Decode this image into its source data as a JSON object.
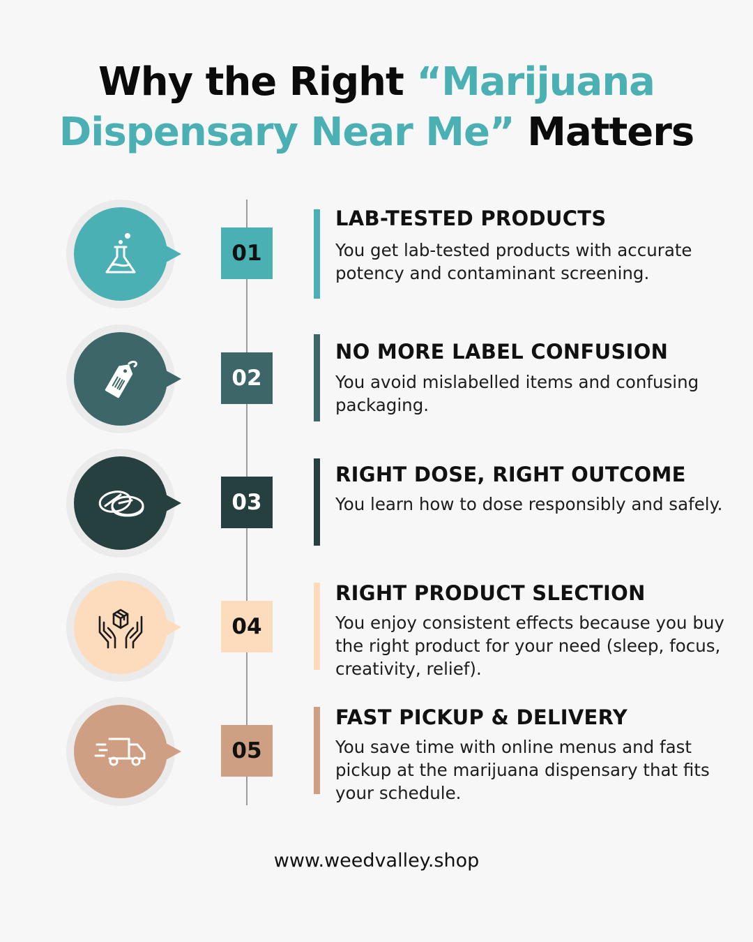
{
  "title": {
    "line1_dark": "Why the Right ",
    "line1_accent": "“Marijuana",
    "line2_accent": "Dispensary Near Me”",
    "line2_dark": " Matters"
  },
  "colors": {
    "teal": "#4ab0b4",
    "slate": "#3d6668",
    "dark": "#26403f",
    "peach": "#fcdcbd",
    "tan": "#cf9f84"
  },
  "items": [
    {
      "number": "01",
      "heading": "LAB-TESTED PRODUCTS",
      "text": "You get lab-tested products with accurate potency and contaminant screening.",
      "icon": "flask-icon",
      "color": "#4ab0b4",
      "num_text_color": "#111111"
    },
    {
      "number": "02",
      "heading": "NO MORE LABEL CONFUSION",
      "text": "You avoid mislabelled items and confusing packaging.",
      "icon": "tag-icon",
      "color": "#3d6668",
      "num_text_color": "#ffffff"
    },
    {
      "number": "03",
      "heading": "RIGHT DOSE, RIGHT OUTCOME",
      "text": "You learn how to dose responsibly and safely.",
      "icon": "pills-icon",
      "color": "#26403f",
      "num_text_color": "#ffffff"
    },
    {
      "number": "04",
      "heading": "RIGHT PRODUCT SLECTION",
      "text": "You enjoy consistent effects because you buy the right product for your need (sleep, focus, creativity, relief).",
      "icon": "hands-box-icon",
      "color": "#fcdcbd",
      "num_text_color": "#111111"
    },
    {
      "number": "05",
      "heading": "FAST PICKUP & DELIVERY",
      "text": "You save time with online menus and fast pickup at the marijuana dispensary that fits your schedule.",
      "icon": "delivery-truck-icon",
      "color": "#cf9f84",
      "num_text_color": "#111111"
    }
  ],
  "footer": {
    "url": "www.weedvalley.shop"
  }
}
